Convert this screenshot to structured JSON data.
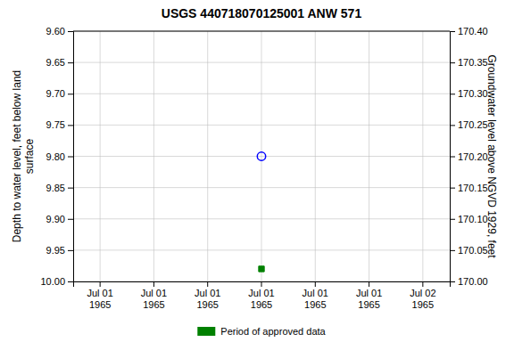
{
  "chart_data": {
    "type": "scatter",
    "title": "USGS 440718070125001 ANW  571",
    "y_label": "Depth to water level, feet below land\nsurface",
    "y2_label": "Groundwater level above NGVD 1929, feet",
    "categories": [
      "Jul 01\n1965",
      "Jul 01\n1965",
      "Jul 01\n1965",
      "Jul 01\n1965",
      "Jul 01\n1965",
      "Jul 01\n1965",
      "Jul 02\n1965"
    ],
    "ylim": [
      10.0,
      9.6
    ],
    "yticks": [
      {
        "value": 9.6,
        "label": "9.60"
      },
      {
        "value": 9.65,
        "label": "9.65"
      },
      {
        "value": 9.7,
        "label": "9.70"
      },
      {
        "value": 9.75,
        "label": "9.75"
      },
      {
        "value": 9.8,
        "label": "9.80"
      },
      {
        "value": 9.85,
        "label": "9.85"
      },
      {
        "value": 9.9,
        "label": "9.90"
      },
      {
        "value": 9.95,
        "label": "9.95"
      },
      {
        "value": 10.0,
        "label": "10.00"
      }
    ],
    "y2lim": [
      170.0,
      170.4
    ],
    "y2ticks": [
      {
        "value": 170.0,
        "label": "170.00"
      },
      {
        "value": 170.05,
        "label": "170.05"
      },
      {
        "value": 170.1,
        "label": "170.10"
      },
      {
        "value": 170.15,
        "label": "170.15"
      },
      {
        "value": 170.2,
        "label": "170.20"
      },
      {
        "value": 170.25,
        "label": "170.25"
      },
      {
        "value": 170.3,
        "label": "170.30"
      },
      {
        "value": 170.35,
        "label": "170.35"
      },
      {
        "value": 170.4,
        "label": "170.40"
      }
    ],
    "grid": true,
    "legend": "bottom",
    "series": [
      {
        "color": "#0000ff",
        "marker": "circle-open",
        "values": [
          null,
          null,
          null,
          9.8,
          null,
          null,
          null
        ]
      },
      {
        "name": "Period of approved data",
        "color": "#008000",
        "marker": "square",
        "values": [
          null,
          null,
          null,
          9.98,
          null,
          null,
          null
        ]
      }
    ]
  }
}
